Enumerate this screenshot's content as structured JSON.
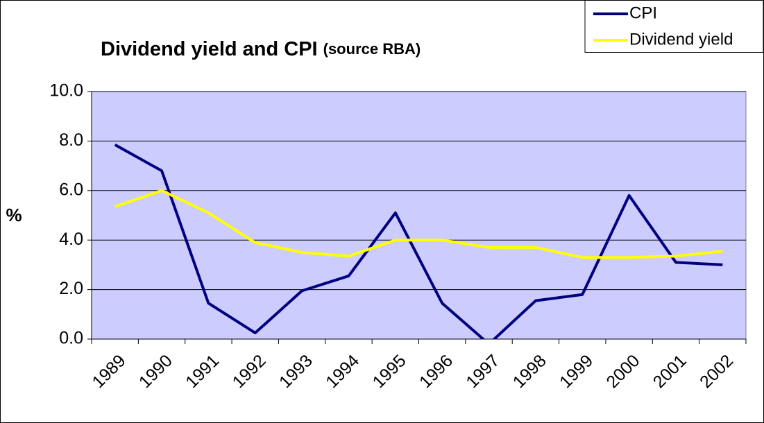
{
  "chart_data": {
    "type": "line",
    "title": "Dividend yield and CPI",
    "subtitle": "(source RBA)",
    "ylabel": "%",
    "categories": [
      "1989",
      "1990",
      "1991",
      "1992",
      "1993",
      "1994",
      "1995",
      "1996",
      "1997",
      "1998",
      "1999",
      "2000",
      "2001",
      "2002"
    ],
    "series": [
      {
        "name": "CPI",
        "color": "#000080",
        "values": [
          7.85,
          6.8,
          1.45,
          0.25,
          1.95,
          2.55,
          5.1,
          1.45,
          -0.2,
          1.55,
          1.8,
          5.8,
          3.1,
          3.0
        ]
      },
      {
        "name": "Dividend yield",
        "color": "#ffff00",
        "values": [
          5.35,
          6.0,
          5.1,
          3.9,
          3.5,
          3.35,
          4.0,
          4.0,
          3.7,
          3.7,
          3.3,
          3.3,
          3.35,
          3.55
        ]
      }
    ],
    "ylim": [
      0,
      10
    ],
    "yticks": [
      {
        "value": 0,
        "label": "0.0"
      },
      {
        "value": 2,
        "label": "2.0"
      },
      {
        "value": 4,
        "label": "4.0"
      },
      {
        "value": 6,
        "label": "6.0"
      },
      {
        "value": 8,
        "label": "8.0"
      },
      {
        "value": 10,
        "label": "10.0"
      }
    ],
    "grid": true,
    "legend": "top-right",
    "background": "#ccccff"
  }
}
